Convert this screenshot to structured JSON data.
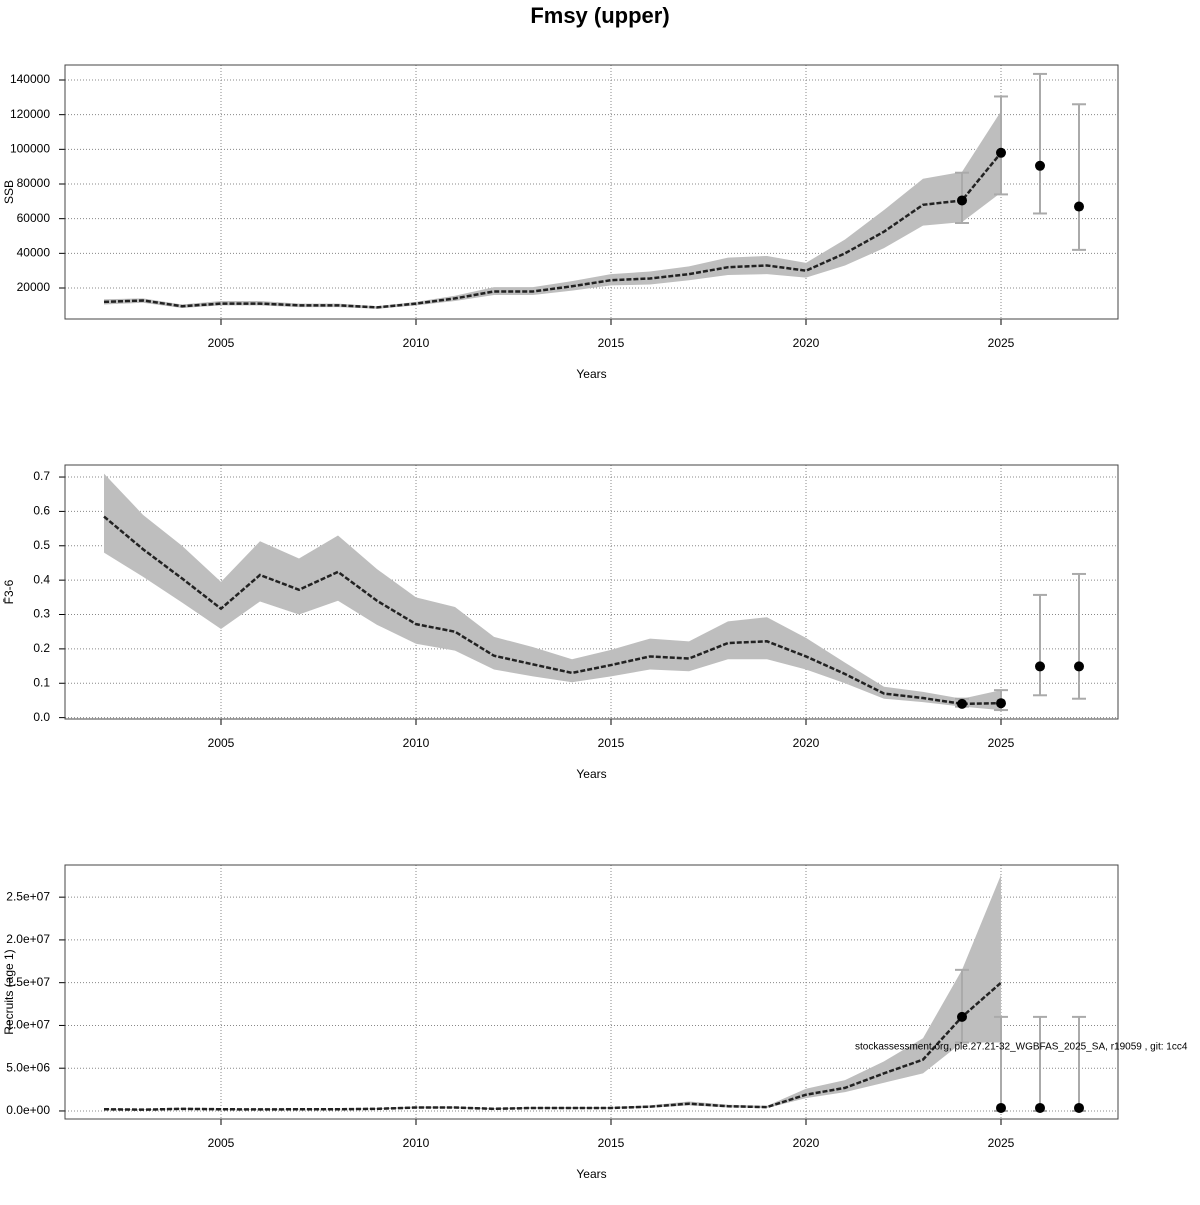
{
  "title": "Fmsy (upper)",
  "chart_data": [
    {
      "type": "line",
      "xlabel": "Years",
      "ylabel": "SSB",
      "x": [
        2002,
        2003,
        2004,
        2005,
        2006,
        2007,
        2008,
        2009,
        2010,
        2011,
        2012,
        2013,
        2014,
        2015,
        2016,
        2017,
        2018,
        2019,
        2020,
        2021,
        2022,
        2023,
        2024,
        2025
      ],
      "values": [
        12000,
        12800,
        9500,
        11000,
        11000,
        10000,
        10000,
        8800,
        11000,
        14000,
        18000,
        18000,
        21000,
        24500,
        25500,
        28000,
        32000,
        33000,
        30000,
        40000,
        52500,
        68000,
        70500,
        98000
      ],
      "lower": [
        10500,
        11500,
        8500,
        10000,
        10000,
        9000,
        9000,
        8000,
        10000,
        12500,
        16000,
        16000,
        18500,
        21500,
        22000,
        24500,
        27500,
        28000,
        26000,
        33000,
        43000,
        56000,
        58000,
        75000
      ],
      "upper": [
        13500,
        14000,
        10500,
        12500,
        12500,
        11000,
        11000,
        9500,
        12000,
        15500,
        20500,
        20500,
        24000,
        28000,
        29500,
        32500,
        37500,
        38500,
        34500,
        48000,
        65000,
        83000,
        87000,
        122000
      ],
      "color": "#222222",
      "band_color": "#bebebe",
      "points": {
        "x": [
          2024,
          2025,
          2026,
          2027
        ],
        "values": [
          70500,
          98000,
          90500,
          67000
        ],
        "lower": [
          57500,
          74000,
          63000,
          42000
        ],
        "upper": [
          86500,
          130500,
          143500,
          126000
        ],
        "color": "#000000",
        "error_color": "#aaaaaa"
      },
      "xlim": [
        2001,
        2028
      ],
      "xticks": [
        2005,
        2010,
        2015,
        2020,
        2025
      ],
      "ylim": [
        2120,
        148650
      ],
      "yticks": [
        20000,
        40000,
        60000,
        80000,
        100000,
        120000,
        140000
      ],
      "grid": true
    },
    {
      "type": "line",
      "xlabel": "Years",
      "ylabel": "F̄3-6",
      "x": [
        2002,
        2003,
        2004,
        2005,
        2006,
        2007,
        2008,
        2009,
        2010,
        2011,
        2012,
        2013,
        2014,
        2015,
        2016,
        2017,
        2018,
        2019,
        2020,
        2021,
        2022,
        2023,
        2024,
        2025
      ],
      "values": [
        0.585,
        0.49,
        0.405,
        0.317,
        0.415,
        0.372,
        0.424,
        0.34,
        0.272,
        0.25,
        0.18,
        0.155,
        0.13,
        0.153,
        0.178,
        0.172,
        0.217,
        0.222,
        0.178,
        0.127,
        0.07,
        0.057,
        0.04,
        0.042
      ],
      "lower": [
        0.48,
        0.41,
        0.335,
        0.258,
        0.338,
        0.3,
        0.34,
        0.27,
        0.215,
        0.195,
        0.14,
        0.12,
        0.103,
        0.12,
        0.14,
        0.135,
        0.17,
        0.17,
        0.14,
        0.1,
        0.055,
        0.045,
        0.032,
        0.022
      ],
      "upper": [
        0.71,
        0.59,
        0.5,
        0.395,
        0.513,
        0.463,
        0.53,
        0.432,
        0.35,
        0.322,
        0.235,
        0.205,
        0.17,
        0.197,
        0.23,
        0.222,
        0.28,
        0.292,
        0.232,
        0.16,
        0.09,
        0.075,
        0.055,
        0.08
      ],
      "color": "#222222",
      "band_color": "#bebebe",
      "points": {
        "x": [
          2024,
          2025,
          2026,
          2027
        ],
        "values": [
          0.04,
          0.042,
          0.149,
          0.149
        ],
        "lower": [
          0.032,
          0.022,
          0.065,
          0.055
        ],
        "upper": [
          0.055,
          0.08,
          0.357,
          0.418
        ],
        "color": "#000000",
        "error_color": "#aaaaaa"
      },
      "xlim": [
        2001,
        2028
      ],
      "xticks": [
        2005,
        2010,
        2015,
        2020,
        2025
      ],
      "ylim": [
        -0.004,
        0.735
      ],
      "yticks": [
        {
          "value": 0,
          "label": "0.0"
        },
        0.1,
        0.2,
        0.3,
        0.4,
        0.5,
        0.6,
        0.7
      ],
      "grid": true
    },
    {
      "type": "line",
      "xlabel": "Years",
      "ylabel": "Recruits (age 1)",
      "x": [
        2002,
        2003,
        2004,
        2005,
        2006,
        2007,
        2008,
        2009,
        2010,
        2011,
        2012,
        2013,
        2014,
        2015,
        2016,
        2017,
        2018,
        2019,
        2020,
        2021,
        2022,
        2023,
        2024,
        2025
      ],
      "values": [
        200000,
        150000,
        250000,
        200000,
        180000,
        200000,
        200000,
        250000,
        400000,
        400000,
        250000,
        350000,
        350000,
        350000,
        500000,
        850000,
        550000,
        450000,
        1900000,
        2700000,
        4400000,
        6000000,
        11000000,
        15000000
      ],
      "lower": [
        150000,
        110000,
        190000,
        150000,
        135000,
        150000,
        150000,
        190000,
        300000,
        300000,
        190000,
        260000,
        260000,
        260000,
        380000,
        650000,
        420000,
        340000,
        1500000,
        2200000,
        3300000,
        4400000,
        8000000,
        8000000
      ],
      "upper": [
        260000,
        200000,
        330000,
        260000,
        240000,
        260000,
        260000,
        330000,
        520000,
        520000,
        330000,
        460000,
        460000,
        460000,
        650000,
        1100000,
        720000,
        600000,
        2600000,
        3600000,
        5800000,
        8500000,
        16500000,
        27600000
      ],
      "color": "#222222",
      "band_color": "#bebebe",
      "points": {
        "x": [
          2024,
          2025,
          2026,
          2027
        ],
        "values": [
          11000000,
          350000,
          350000,
          350000
        ],
        "lower": [
          8000000,
          0,
          0,
          0
        ],
        "upper": [
          16500000,
          11000000,
          11000000,
          11000000
        ],
        "color": "#000000",
        "error_color": "#aaaaaa"
      },
      "xlim": [
        2001,
        2028
      ],
      "xticks": [
        2005,
        2010,
        2015,
        2020,
        2025
      ],
      "ylim": [
        -940000,
        28760000
      ],
      "yticks": [
        {
          "value": 0,
          "label": "0.0e+00"
        },
        {
          "value": 5000000,
          "label": "5.0e+06"
        },
        {
          "value": 10000000,
          "label": "1.0e+07"
        },
        {
          "value": 15000000,
          "label": "1.5e+07"
        },
        {
          "value": 20000000,
          "label": "2.0e+07"
        },
        {
          "value": 25000000,
          "label": "2.5e+07"
        }
      ],
      "grid": true,
      "annotation": "stockassessment.org, ple.27.21-32_WGBFAS_2025_SA, r19059 , git: 1cc4"
    }
  ]
}
